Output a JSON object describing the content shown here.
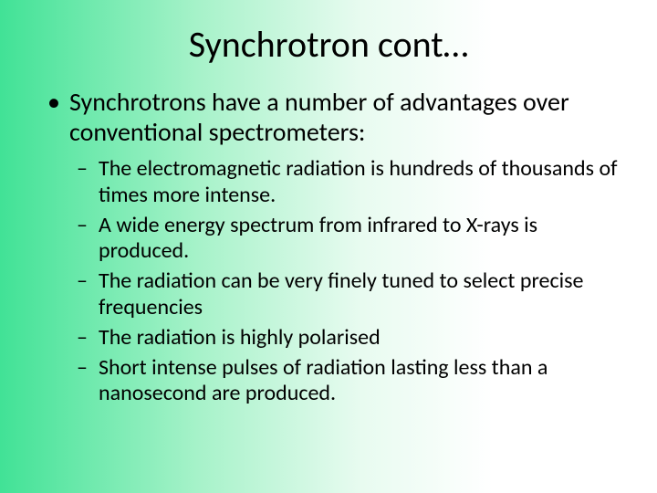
{
  "slide": {
    "title": "Synchrotron cont…",
    "background_gradient": {
      "from": "#41e296",
      "mid": "#a6f2c9",
      "to": "#ffffff",
      "direction": "left-to-right"
    },
    "title_fontsize": 40,
    "level1_fontsize": 28,
    "level2_fontsize": 24,
    "text_color": "#000000",
    "font_family": "Calibri",
    "bullets": {
      "level1": [
        "Synchrotrons have a number of advantages over conventional spectrometers:"
      ],
      "level2": [
        "The electromagnetic radiation is hundreds of thousands of times more intense.",
        "A wide energy spectrum from infrared to X-rays is produced.",
        "The radiation can be very finely tuned to select precise frequencies",
        "The radiation is highly polarised",
        "Short intense pulses of radiation lasting less than a nanosecond are produced."
      ]
    }
  }
}
